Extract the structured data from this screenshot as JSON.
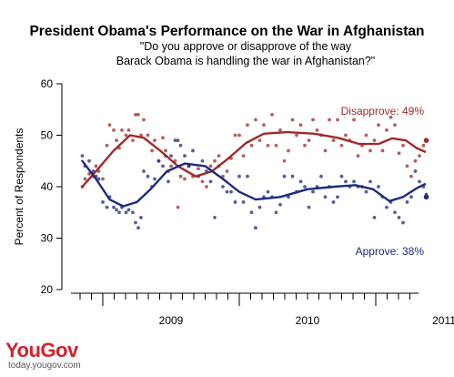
{
  "chart_data": {
    "type": "scatter",
    "title": "President Obama's Performance on the War in Afghanistan",
    "subtitle_lines": [
      "\"Do you approve or disapprove of the way",
      "Barack Obama is handling the war in Afghanistan?\""
    ],
    "ylabel": "Percent of Respondents",
    "xlabel": "",
    "ylim": [
      20,
      60
    ],
    "yticks": [
      20,
      30,
      40,
      50,
      60
    ],
    "xrange": [
      2008.7,
      2011.38
    ],
    "xtick_labels": [
      {
        "label": "2009",
        "x": 2009.0
      },
      {
        "label": "2010",
        "x": 2010.0
      },
      {
        "label": "2011",
        "x": 2011.0
      }
    ],
    "grid": false,
    "series": [
      {
        "name": "Disapprove",
        "label": "Disapprove: 49%",
        "color": "#9e2a2b",
        "latest": 49,
        "trend": [
          [
            2008.85,
            40
          ],
          [
            2008.95,
            43
          ],
          [
            2009.08,
            47
          ],
          [
            2009.2,
            50
          ],
          [
            2009.3,
            49.5
          ],
          [
            2009.42,
            47
          ],
          [
            2009.55,
            44
          ],
          [
            2009.68,
            42
          ],
          [
            2009.8,
            43
          ],
          [
            2009.92,
            45.5
          ],
          [
            2010.05,
            48.5
          ],
          [
            2010.18,
            50.3
          ],
          [
            2010.35,
            50.6
          ],
          [
            2010.55,
            50.3
          ],
          [
            2010.72,
            49.5
          ],
          [
            2010.88,
            48.3
          ],
          [
            2011.02,
            48.3
          ],
          [
            2011.12,
            49.4
          ],
          [
            2011.22,
            49
          ],
          [
            2011.3,
            47.5
          ],
          [
            2011.36,
            46.8
          ]
        ],
        "points": [
          [
            2008.85,
            40
          ],
          [
            2008.87,
            41.5
          ],
          [
            2008.9,
            42.5
          ],
          [
            2008.93,
            42
          ],
          [
            2008.95,
            44
          ],
          [
            2008.97,
            43
          ],
          [
            2009.0,
            41.5
          ],
          [
            2009.03,
            48
          ],
          [
            2009.05,
            52
          ],
          [
            2009.08,
            51
          ],
          [
            2009.1,
            49
          ],
          [
            2009.12,
            47.5
          ],
          [
            2009.14,
            51
          ],
          [
            2009.17,
            50
          ],
          [
            2009.19,
            51
          ],
          [
            2009.22,
            49
          ],
          [
            2009.24,
            54
          ],
          [
            2009.26,
            54
          ],
          [
            2009.28,
            50
          ],
          [
            2009.3,
            53
          ],
          [
            2009.33,
            50
          ],
          [
            2009.36,
            47
          ],
          [
            2009.38,
            49
          ],
          [
            2009.41,
            45
          ],
          [
            2009.44,
            49.5
          ],
          [
            2009.46,
            47
          ],
          [
            2009.48,
            43
          ],
          [
            2009.5,
            44
          ],
          [
            2009.53,
            45
          ],
          [
            2009.55,
            36
          ],
          [
            2009.57,
            42
          ],
          [
            2009.6,
            41.5
          ],
          [
            2009.63,
            44
          ],
          [
            2009.66,
            42
          ],
          [
            2009.7,
            43.5
          ],
          [
            2009.73,
            41
          ],
          [
            2009.76,
            40
          ],
          [
            2009.79,
            44
          ],
          [
            2009.82,
            45
          ],
          [
            2009.85,
            46
          ],
          [
            2009.88,
            42
          ],
          [
            2009.91,
            43
          ],
          [
            2009.94,
            45.5
          ],
          [
            2009.97,
            50
          ],
          [
            2010.0,
            50
          ],
          [
            2010.03,
            46
          ],
          [
            2010.06,
            52
          ],
          [
            2010.09,
            48
          ],
          [
            2010.12,
            53
          ],
          [
            2010.15,
            49
          ],
          [
            2010.18,
            52
          ],
          [
            2010.21,
            48
          ],
          [
            2010.24,
            54
          ],
          [
            2010.27,
            48
          ],
          [
            2010.3,
            51
          ],
          [
            2010.33,
            45
          ],
          [
            2010.36,
            47
          ],
          [
            2010.39,
            53
          ],
          [
            2010.42,
            50
          ],
          [
            2010.45,
            52
          ],
          [
            2010.48,
            48
          ],
          [
            2010.51,
            49
          ],
          [
            2010.54,
            53
          ],
          [
            2010.57,
            51
          ],
          [
            2010.6,
            50
          ],
          [
            2010.63,
            47
          ],
          [
            2010.66,
            53
          ],
          [
            2010.69,
            49
          ],
          [
            2010.72,
            53
          ],
          [
            2010.75,
            48
          ],
          [
            2010.78,
            50
          ],
          [
            2010.81,
            49
          ],
          [
            2010.84,
            53
          ],
          [
            2010.87,
            46
          ],
          [
            2010.9,
            48
          ],
          [
            2010.93,
            50
          ],
          [
            2010.96,
            47
          ],
          [
            2010.99,
            49
          ],
          [
            2011.02,
            52
          ],
          [
            2011.05,
            47
          ],
          [
            2011.08,
            51
          ],
          [
            2011.11,
            53.5
          ],
          [
            2011.14,
            52
          ],
          [
            2011.17,
            46.5
          ],
          [
            2011.2,
            48
          ],
          [
            2011.23,
            44
          ],
          [
            2011.26,
            42
          ],
          [
            2011.29,
            45
          ],
          [
            2011.32,
            46
          ],
          [
            2011.35,
            48
          ],
          [
            2011.37,
            49
          ]
        ]
      },
      {
        "name": "Approve",
        "label": "Approve: 38%",
        "color": "#1e2a7d",
        "latest": 38,
        "trend": [
          [
            2008.85,
            45
          ],
          [
            2008.95,
            41.5
          ],
          [
            2009.05,
            37.5
          ],
          [
            2009.15,
            36.2
          ],
          [
            2009.25,
            37
          ],
          [
            2009.35,
            39.5
          ],
          [
            2009.47,
            43
          ],
          [
            2009.6,
            44.5
          ],
          [
            2009.75,
            44
          ],
          [
            2009.88,
            41.5
          ],
          [
            2010.0,
            39
          ],
          [
            2010.12,
            37.5
          ],
          [
            2010.3,
            38
          ],
          [
            2010.5,
            39.5
          ],
          [
            2010.7,
            40
          ],
          [
            2010.85,
            40.3
          ],
          [
            2010.98,
            39.5
          ],
          [
            2011.1,
            37.2
          ],
          [
            2011.2,
            38
          ],
          [
            2011.3,
            39.7
          ],
          [
            2011.36,
            40.5
          ]
        ],
        "points": [
          [
            2008.85,
            46
          ],
          [
            2008.87,
            44
          ],
          [
            2008.9,
            45
          ],
          [
            2008.93,
            43
          ],
          [
            2008.95,
            42
          ],
          [
            2008.97,
            41.5
          ],
          [
            2009.0,
            37
          ],
          [
            2009.03,
            36
          ],
          [
            2009.05,
            38
          ],
          [
            2009.08,
            36
          ],
          [
            2009.1,
            35.5
          ],
          [
            2009.12,
            35
          ],
          [
            2009.14,
            36
          ],
          [
            2009.17,
            35
          ],
          [
            2009.19,
            35.5
          ],
          [
            2009.22,
            35
          ],
          [
            2009.24,
            33
          ],
          [
            2009.26,
            32
          ],
          [
            2009.28,
            34
          ],
          [
            2009.3,
            43
          ],
          [
            2009.33,
            42
          ],
          [
            2009.36,
            40
          ],
          [
            2009.38,
            41.5
          ],
          [
            2009.41,
            45
          ],
          [
            2009.44,
            44
          ],
          [
            2009.46,
            46
          ],
          [
            2009.48,
            41
          ],
          [
            2009.5,
            46
          ],
          [
            2009.53,
            49
          ],
          [
            2009.55,
            49
          ],
          [
            2009.57,
            48
          ],
          [
            2009.6,
            46
          ],
          [
            2009.63,
            44
          ],
          [
            2009.66,
            47
          ],
          [
            2009.7,
            42
          ],
          [
            2009.73,
            45
          ],
          [
            2009.76,
            43
          ],
          [
            2009.79,
            41
          ],
          [
            2009.82,
            34
          ],
          [
            2009.85,
            44
          ],
          [
            2009.88,
            40
          ],
          [
            2009.91,
            39
          ],
          [
            2009.94,
            39
          ],
          [
            2009.97,
            37
          ],
          [
            2010.0,
            42
          ],
          [
            2010.03,
            37
          ],
          [
            2010.06,
            42
          ],
          [
            2010.09,
            35
          ],
          [
            2010.12,
            32
          ],
          [
            2010.15,
            36
          ],
          [
            2010.18,
            38
          ],
          [
            2010.21,
            39
          ],
          [
            2010.24,
            38
          ],
          [
            2010.27,
            35
          ],
          [
            2010.3,
            36.5
          ],
          [
            2010.33,
            42
          ],
          [
            2010.36,
            38
          ],
          [
            2010.39,
            42
          ],
          [
            2010.42,
            39
          ],
          [
            2010.45,
            41
          ],
          [
            2010.48,
            40
          ],
          [
            2010.51,
            36
          ],
          [
            2010.54,
            39
          ],
          [
            2010.57,
            40
          ],
          [
            2010.6,
            42
          ],
          [
            2010.63,
            38
          ],
          [
            2010.66,
            40
          ],
          [
            2010.69,
            37
          ],
          [
            2010.72,
            38
          ],
          [
            2010.75,
            42
          ],
          [
            2010.78,
            41
          ],
          [
            2010.81,
            40
          ],
          [
            2010.84,
            41
          ],
          [
            2010.87,
            40
          ],
          [
            2010.9,
            40
          ],
          [
            2010.93,
            39
          ],
          [
            2010.96,
            41
          ],
          [
            2010.99,
            34
          ],
          [
            2011.02,
            40
          ],
          [
            2011.05,
            38
          ],
          [
            2011.08,
            36
          ],
          [
            2011.11,
            37
          ],
          [
            2011.14,
            35
          ],
          [
            2011.17,
            34
          ],
          [
            2011.2,
            33
          ],
          [
            2011.23,
            37
          ],
          [
            2011.26,
            38
          ],
          [
            2011.29,
            43
          ],
          [
            2011.32,
            41
          ],
          [
            2011.35,
            40
          ],
          [
            2011.37,
            38.5
          ]
        ]
      }
    ]
  },
  "brand": {
    "you": "You",
    "gov": "Gov",
    "url": "today.yougov.com"
  }
}
